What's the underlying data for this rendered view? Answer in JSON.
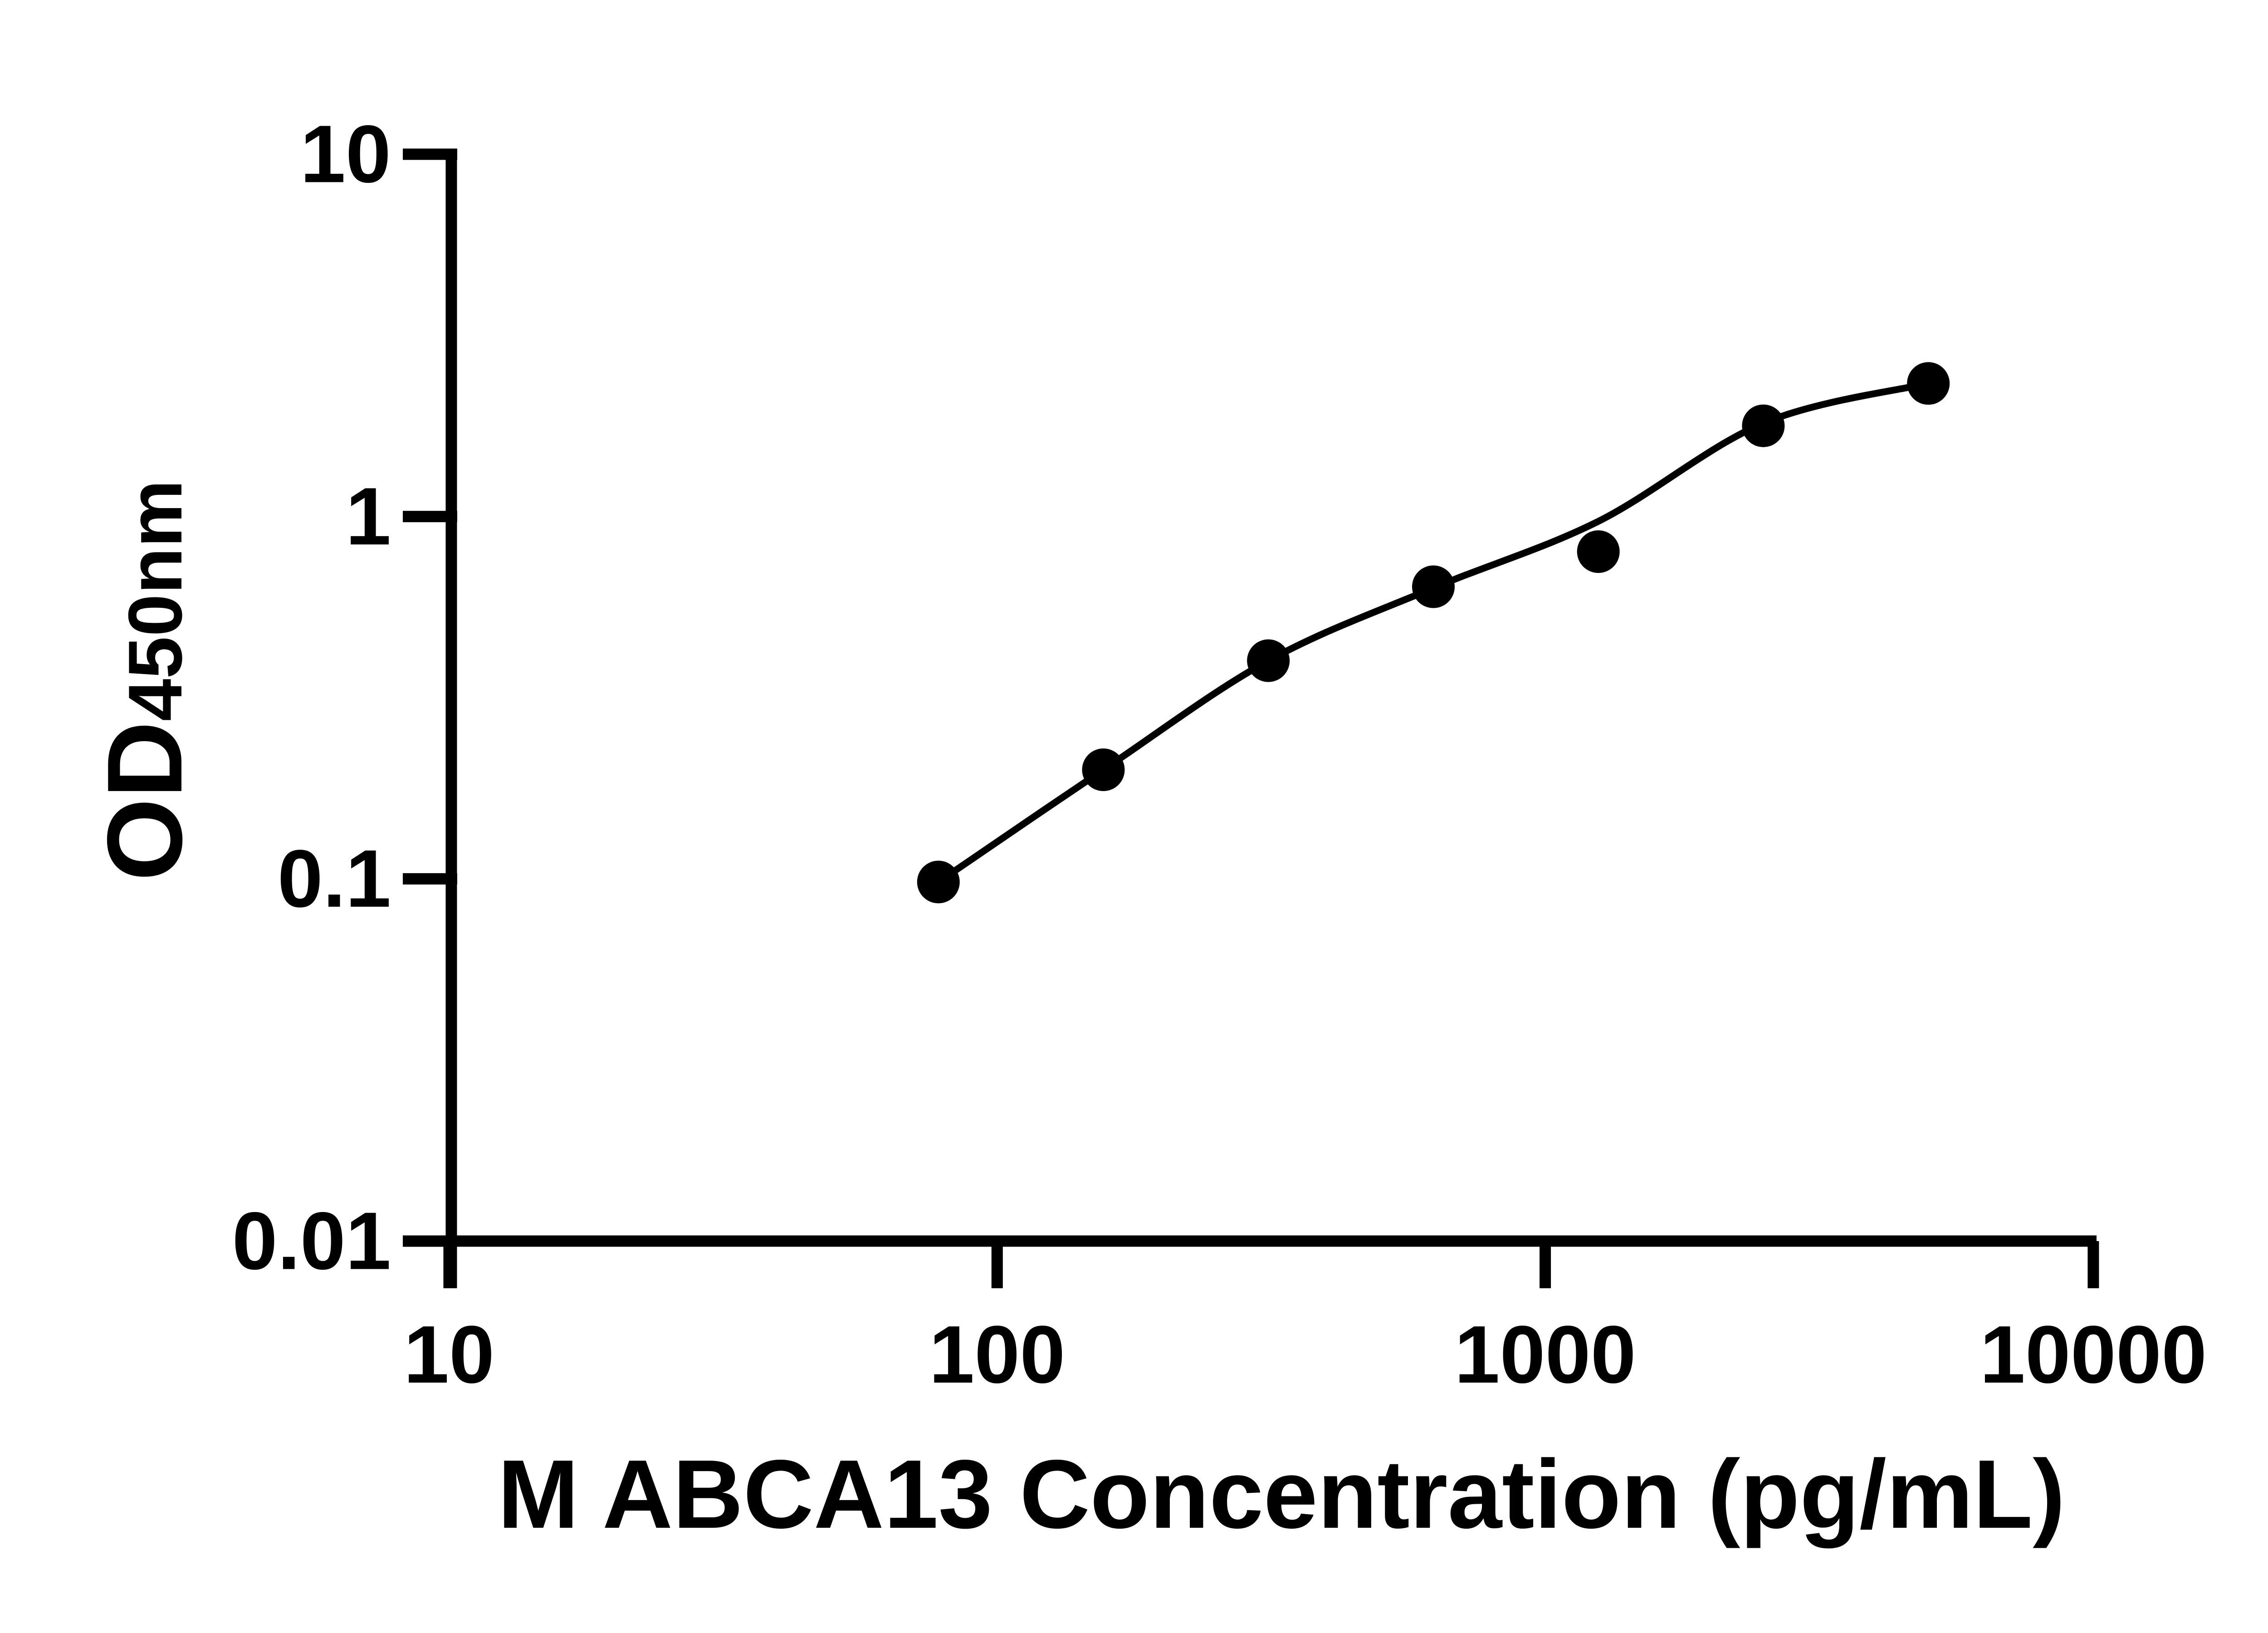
{
  "figure": {
    "background_color": "#ffffff",
    "ink_color": "#000000"
  },
  "chart_data": {
    "type": "scatter",
    "title": "",
    "xlabel": "M ABCA13 Concentration (pg/mL)",
    "ylabel": "OD",
    "ylabel_subscript": "450nm",
    "x_scale": "log10",
    "y_scale": "log10",
    "xlim": [
      10,
      10000
    ],
    "ylim": [
      0.01,
      10
    ],
    "grid": false,
    "legend": null,
    "x_ticks": [
      10,
      100,
      1000,
      10000
    ],
    "x_tick_labels": [
      "10",
      "100",
      "1000",
      "10000"
    ],
    "y_ticks": [
      10,
      1,
      0.1,
      0.01
    ],
    "y_tick_labels": [
      "10",
      "1",
      "0.1",
      "0.01"
    ],
    "series": [
      {
        "marker": "filled-circle",
        "marker_color": "#000000",
        "points": [
          {
            "concentration_pg_ml": 78.125,
            "od450": 0.098
          },
          {
            "concentration_pg_ml": 156.25,
            "od450": 0.2
          },
          {
            "concentration_pg_ml": 312.5,
            "od450": 0.4
          },
          {
            "concentration_pg_ml": 625,
            "od450": 0.64
          },
          {
            "concentration_pg_ml": 1250,
            "od450": 0.8
          },
          {
            "concentration_pg_ml": 2500,
            "od450": 1.78
          },
          {
            "concentration_pg_ml": 5000,
            "od450": 2.33
          }
        ]
      }
    ],
    "fit_curve": {
      "style": "smooth",
      "color": "#000000",
      "anchors": [
        [
          78.125,
          0.098
        ],
        [
          156.25,
          0.2
        ],
        [
          312.5,
          0.4
        ],
        [
          625,
          0.635
        ],
        [
          1250,
          0.97
        ],
        [
          2500,
          1.81
        ],
        [
          5000,
          2.33
        ]
      ]
    }
  }
}
